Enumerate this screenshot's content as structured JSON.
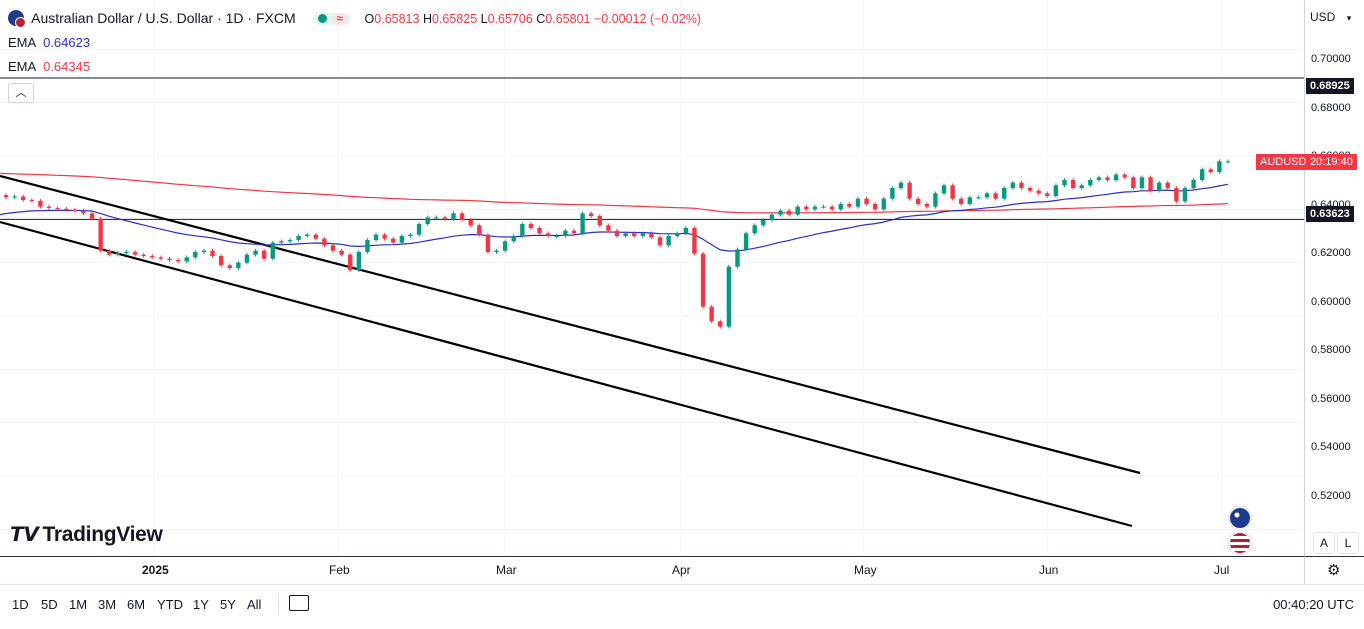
{
  "legend": {
    "title": "Australian Dollar / U.S. Dollar · 1D · FXCM",
    "open_label": "O",
    "open": "0.65813",
    "high_label": "H",
    "high": "0.65825",
    "low_label": "L",
    "low": "0.65706",
    "close_label": "C",
    "close": "0.65801",
    "change": "−0.00012 (−0.02%)",
    "ema_fast_label": "EMA",
    "ema_fast_value": "0.64623",
    "ema_fast_color": "#2b2fc7",
    "ema_slow_label": "EMA",
    "ema_slow_value": "0.64345",
    "ema_slow_color": "#f23645",
    "collapse_icon": "chevron-up-icon"
  },
  "price_scale": {
    "currency": "USD",
    "ticks": [
      "0.70000",
      "0.68000",
      "0.66000",
      "0.64000",
      "0.62000",
      "0.60000",
      "0.58000",
      "0.56000",
      "0.54000",
      "0.52000"
    ],
    "level_high": "0.68925",
    "level_low": "0.63623",
    "symbol_tag": "AUDUSD",
    "countdown": "20:19:40",
    "auto_label": "A",
    "log_label": "L"
  },
  "time_axis": {
    "labels": [
      "2025",
      "Feb",
      "Mar",
      "Apr",
      "May",
      "Jun",
      "Jul"
    ]
  },
  "timeframes": [
    "1D",
    "5D",
    "1M",
    "3M",
    "6M",
    "YTD",
    "1Y",
    "5Y",
    "All"
  ],
  "clock": "00:40:20 UTC",
  "brand": "TradingView",
  "colors": {
    "up": "#089981",
    "down": "#f23645",
    "ema_fast": "#2b2fc7",
    "ema_slow": "#f23645"
  },
  "chart_data": {
    "type": "candlestick",
    "title": "Australian Dollar / U.S. Dollar · 1D · FXCM",
    "ylim": [
      0.51,
      0.7185
    ],
    "horizontal_levels": [
      0.68925,
      0.63623
    ],
    "candles_close": [
      0.6445,
      0.6448,
      0.6435,
      0.6432,
      0.641,
      0.6405,
      0.6402,
      0.6398,
      0.6395,
      0.6385,
      0.6365,
      0.6245,
      0.623,
      0.6237,
      0.624,
      0.623,
      0.6225,
      0.622,
      0.6215,
      0.621,
      0.6205,
      0.622,
      0.624,
      0.6245,
      0.6225,
      0.619,
      0.618,
      0.62,
      0.623,
      0.6245,
      0.6215,
      0.6275,
      0.628,
      0.6285,
      0.63,
      0.6305,
      0.629,
      0.6265,
      0.6245,
      0.623,
      0.6172,
      0.624,
      0.6285,
      0.6305,
      0.629,
      0.6275,
      0.63,
      0.6305,
      0.6345,
      0.637,
      0.637,
      0.6365,
      0.6385,
      0.636,
      0.634,
      0.6305,
      0.624,
      0.6245,
      0.628,
      0.63,
      0.6345,
      0.633,
      0.631,
      0.63,
      0.63,
      0.632,
      0.631,
      0.6385,
      0.6375,
      0.634,
      0.632,
      0.63,
      0.631,
      0.63,
      0.631,
      0.6295,
      0.6265,
      0.63,
      0.631,
      0.633,
      0.6234,
      0.6035,
      0.598,
      0.596,
      0.6185,
      0.625,
      0.631,
      0.634,
      0.636,
      0.638,
      0.6395,
      0.638,
      0.641,
      0.64,
      0.641,
      0.641,
      0.64,
      0.642,
      0.641,
      0.644,
      0.642,
      0.64,
      0.644,
      0.648,
      0.65,
      0.644,
      0.642,
      0.641,
      0.646,
      0.649,
      0.644,
      0.642,
      0.6445,
      0.6445,
      0.646,
      0.644,
      0.648,
      0.65,
      0.648,
      0.647,
      0.646,
      0.645,
      0.649,
      0.651,
      0.648,
      0.649,
      0.651,
      0.652,
      0.651,
      0.653,
      0.652,
      0.648,
      0.652,
      0.647,
      0.65,
      0.648,
      0.643,
      0.648,
      0.651,
      0.655,
      0.654,
      0.658,
      0.658
    ],
    "ema_fast": {
      "name": "EMA",
      "value": 0.64623
    },
    "ema_slow": {
      "name": "EMA",
      "value": 0.64345
    },
    "trendlines": "two descending channel lines from early January to late June"
  }
}
